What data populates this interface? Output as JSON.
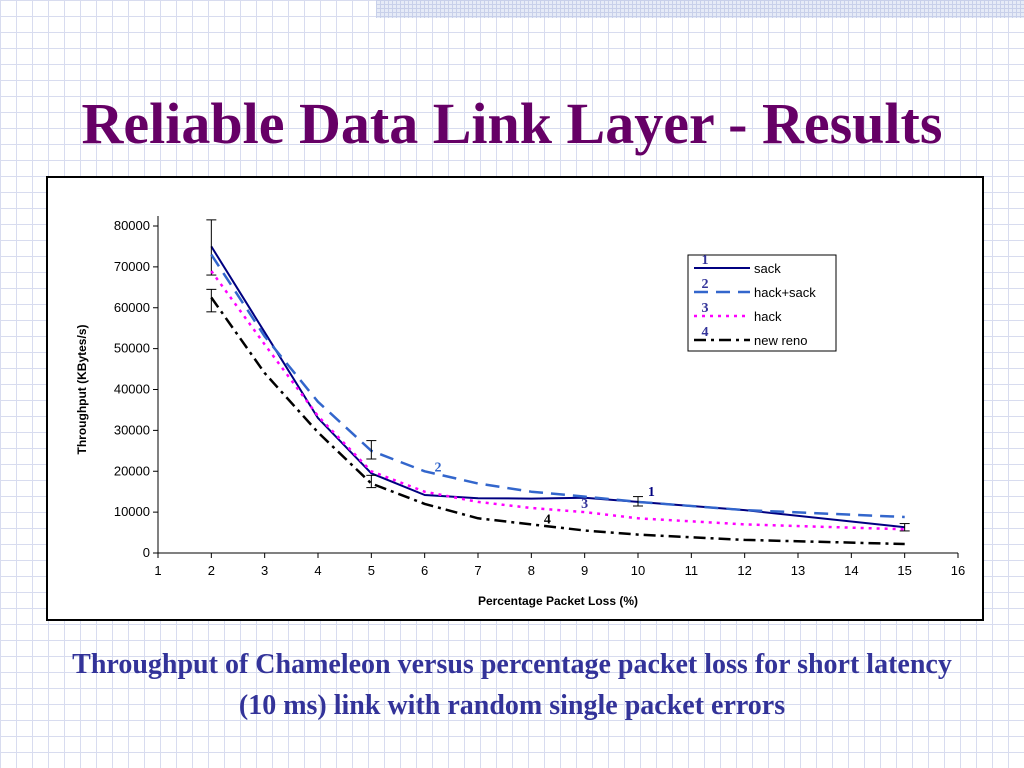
{
  "slide": {
    "title": "Reliable Data Link Layer - Results",
    "caption": "Throughput of Chameleon versus percentage packet loss for short latency (10 ms) link with random single packet errors"
  },
  "chart_data": {
    "type": "line",
    "xlabel": "Percentage Packet Loss (%)",
    "ylabel": "Throughput (KBytes/s)",
    "xlim": [
      1,
      16
    ],
    "ylim": [
      0,
      80000
    ],
    "x_ticks": [
      1,
      2,
      3,
      4,
      5,
      6,
      7,
      8,
      9,
      10,
      11,
      12,
      13,
      14,
      15,
      16
    ],
    "y_ticks": [
      0,
      10000,
      20000,
      30000,
      40000,
      50000,
      60000,
      70000,
      80000
    ],
    "legend_position": "top-right",
    "series": [
      {
        "name": "sack",
        "number": "1",
        "color": "#000080",
        "dash": "solid",
        "x": [
          2,
          3,
          4,
          5,
          6,
          7,
          8,
          9,
          10,
          12,
          15
        ],
        "y": [
          75000,
          54000,
          33000,
          19500,
          14200,
          13400,
          13300,
          13500,
          12500,
          10500,
          6300
        ],
        "error_bars": [
          {
            "x": 2,
            "y": 75000,
            "low": 68000,
            "high": 81500
          },
          {
            "x": 10,
            "y": 12500,
            "low": 11500,
            "high": 13800
          },
          {
            "x": 15,
            "y": 6300,
            "low": 5400,
            "high": 7200
          }
        ],
        "marker_label_at": {
          "x": 10.25,
          "y": 14000
        }
      },
      {
        "name": "hack+sack",
        "number": "2",
        "color": "#3366cc",
        "dash": "long-dash",
        "x": [
          2,
          3,
          4,
          5,
          6,
          7,
          8,
          9,
          10,
          12,
          15
        ],
        "y": [
          73000,
          53000,
          37000,
          25000,
          20000,
          17000,
          15000,
          13800,
          12500,
          10500,
          8800
        ],
        "error_bars": [
          {
            "x": 5,
            "y": 25000,
            "low": 23000,
            "high": 27500
          }
        ],
        "marker_label_at": {
          "x": 6.25,
          "y": 20000
        }
      },
      {
        "name": "hack",
        "number": "3",
        "color": "#ff00ff",
        "dash": "dotted",
        "x": [
          2,
          3,
          4,
          5,
          6,
          7,
          8,
          9,
          10,
          12,
          15
        ],
        "y": [
          69000,
          51000,
          33500,
          20000,
          15000,
          12500,
          11000,
          10000,
          8500,
          7000,
          5800
        ],
        "error_bars": [],
        "marker_label_at": {
          "x": 9.0,
          "y": 11000
        }
      },
      {
        "name": "new reno",
        "number": "4",
        "color": "#000000",
        "dash": "dash-dot",
        "x": [
          2,
          3,
          4,
          5,
          6,
          7,
          8,
          9,
          10,
          12,
          15
        ],
        "y": [
          62500,
          44000,
          29500,
          17000,
          12000,
          8500,
          7000,
          5500,
          4500,
          3200,
          2200
        ],
        "error_bars": [
          {
            "x": 2,
            "y": 62500,
            "low": 59000,
            "high": 64500
          },
          {
            "x": 5,
            "y": 17000,
            "low": 16000,
            "high": 19000
          }
        ],
        "marker_label_at": {
          "x": 8.3,
          "y": 7200
        }
      }
    ]
  }
}
